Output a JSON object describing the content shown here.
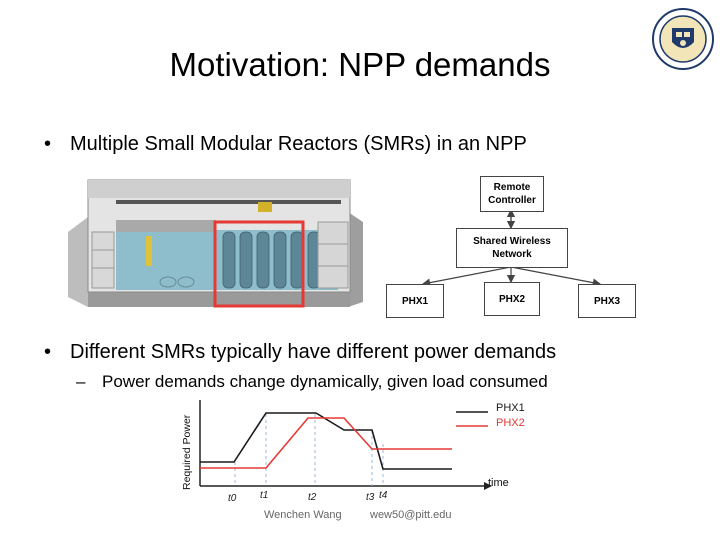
{
  "slide": {
    "title": "Motivation: NPP demands",
    "bullets": [
      "Multiple Small Modular Reactors (SMRs) in an NPP",
      "Different SMRs typically have different power demands"
    ],
    "sub_bullets": [
      "Power demands change dynamically, given load consumed"
    ],
    "bullet_marker": "•",
    "sub_marker": "–"
  },
  "network": {
    "controller": "Remote Controller",
    "network": "Shared Wireless Network",
    "phx": [
      "PHX1",
      "PHX2",
      "PHX3"
    ]
  },
  "chart_data": {
    "type": "line",
    "ylabel": "Required Power",
    "xlabel": "time",
    "x_ticks": [
      "t0",
      "t1",
      "t2",
      "t3",
      "t4"
    ],
    "series": [
      {
        "name": "PHX1",
        "color": "#1a1a1a"
      },
      {
        "name": "PHX2",
        "color": "#e53935"
      }
    ]
  },
  "footer": {
    "author": "Wenchen Wang",
    "email": "wew50@pitt.edu"
  },
  "colors": {
    "highlight": "#e53935",
    "water": "#7fb7c7"
  }
}
